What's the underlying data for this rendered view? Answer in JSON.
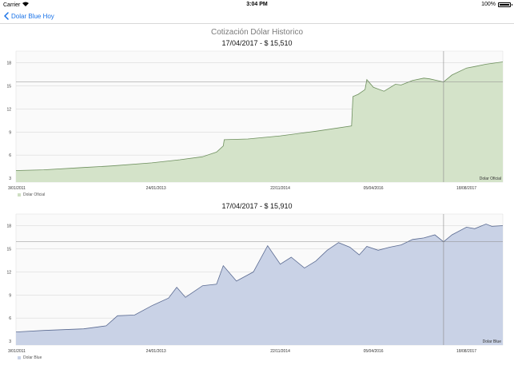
{
  "status_bar": {
    "carrier": "Carrier",
    "time": "3:04 PM",
    "battery": "100%"
  },
  "nav": {
    "back_label": "Dolar Blue Hoy"
  },
  "screen_title": "Cotización Dólar Historico",
  "colors": {
    "accent": "#1a73e8",
    "oficial_fill": "#d4e3c9",
    "oficial_line": "#6d8f5d",
    "blue_fill": "#c9d2e6",
    "blue_line": "#5a6a91"
  },
  "chart_data": [
    {
      "type": "area",
      "header": "17/04/2017 -  $ 15,510",
      "legend": [
        "Dolar Oficial"
      ],
      "watermark": "Dolar Oficial",
      "x_labels": [
        "3/01/2011",
        "24/01/2013",
        "22/11/2014",
        "05/04/2016",
        "18/08/2017"
      ],
      "y_ticks": [
        3,
        6,
        9,
        12,
        15,
        18
      ],
      "ylim": [
        2.5,
        19.5
      ],
      "xlim": [
        "2011-01-03",
        "2018-03-01"
      ],
      "grid": true,
      "crosshair_date": "2017-04-17",
      "crosshair_value": 15.51,
      "series": [
        {
          "name": "Dolar Oficial",
          "x": [
            "2011-01-03",
            "2011-06-01",
            "2012-01-01",
            "2012-06-01",
            "2013-01-01",
            "2013-06-01",
            "2013-10-01",
            "2013-12-15",
            "2014-01-20",
            "2014-01-25",
            "2014-06-01",
            "2014-11-22",
            "2015-06-01",
            "2015-12-10",
            "2015-12-17",
            "2016-01-15",
            "2016-02-20",
            "2016-03-01",
            "2016-04-05",
            "2016-06-01",
            "2016-08-01",
            "2016-09-01",
            "2016-11-01",
            "2017-01-01",
            "2017-02-01",
            "2017-04-17",
            "2017-06-01",
            "2017-08-18",
            "2017-10-01",
            "2017-12-01",
            "2018-01-01",
            "2018-03-01"
          ],
          "values": [
            4.0,
            4.1,
            4.4,
            4.6,
            5.0,
            5.4,
            5.8,
            6.4,
            7.2,
            8.0,
            8.1,
            8.5,
            9.1,
            9.8,
            13.6,
            13.9,
            14.5,
            15.8,
            14.8,
            14.3,
            15.2,
            15.1,
            15.7,
            16.0,
            15.9,
            15.5,
            16.4,
            17.3,
            17.5,
            17.8,
            17.9,
            18.1
          ]
        }
      ]
    },
    {
      "type": "area",
      "header": "17/04/2017 -  $ 15,910",
      "legend": [
        "Dolar Blue"
      ],
      "watermark": "Dolar Blue",
      "x_labels": [
        "3/01/2011",
        "24/01/2013",
        "22/11/2014",
        "05/04/2016",
        "18/08/2017"
      ],
      "y_ticks": [
        3,
        6,
        9,
        12,
        15,
        18
      ],
      "ylim": [
        2.5,
        19.5
      ],
      "xlim": [
        "2011-01-03",
        "2018-03-01"
      ],
      "grid": true,
      "crosshair_date": "2017-04-17",
      "crosshair_value": 15.91,
      "series": [
        {
          "name": "Dolar Blue",
          "x": [
            "2011-01-03",
            "2011-06-01",
            "2012-01-01",
            "2012-05-01",
            "2012-07-01",
            "2012-10-01",
            "2013-01-01",
            "2013-04-01",
            "2013-05-15",
            "2013-07-01",
            "2013-10-01",
            "2013-12-15",
            "2014-01-20",
            "2014-04-01",
            "2014-07-01",
            "2014-09-15",
            "2014-11-22",
            "2015-01-20",
            "2015-04-01",
            "2015-06-01",
            "2015-08-01",
            "2015-10-01",
            "2015-12-01",
            "2016-01-20",
            "2016-03-01",
            "2016-05-01",
            "2016-07-01",
            "2016-09-01",
            "2016-11-01",
            "2017-01-01",
            "2017-03-01",
            "2017-04-17",
            "2017-06-01",
            "2017-08-18",
            "2017-10-01",
            "2017-12-01",
            "2018-01-01",
            "2018-03-01"
          ],
          "values": [
            4.2,
            4.4,
            4.6,
            5.0,
            6.3,
            6.4,
            7.6,
            8.6,
            10.0,
            8.7,
            10.2,
            10.4,
            12.8,
            10.8,
            12.0,
            15.4,
            13.0,
            13.9,
            12.5,
            13.4,
            14.8,
            15.8,
            15.2,
            14.2,
            15.3,
            14.8,
            15.2,
            15.5,
            16.2,
            16.4,
            16.8,
            15.9,
            16.8,
            17.8,
            17.6,
            18.2,
            17.9,
            18.0
          ]
        }
      ]
    }
  ]
}
